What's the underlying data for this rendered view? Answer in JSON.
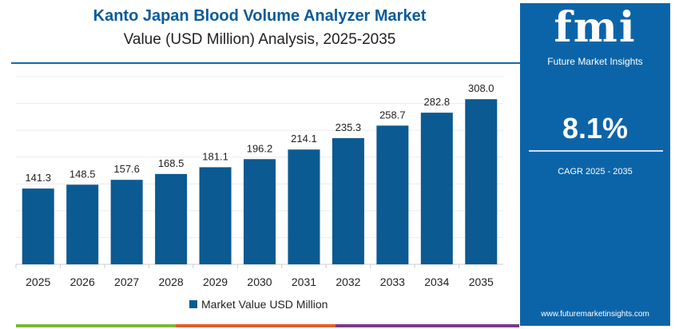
{
  "chart_data": {
    "type": "bar",
    "title": "Kanto Japan Blood Volume Analyzer Market",
    "subtitle": "Value (USD Million) Analysis, 2025-2035",
    "categories": [
      "2025",
      "2026",
      "2027",
      "2028",
      "2029",
      "2030",
      "2031",
      "2032",
      "2033",
      "2034",
      "2035"
    ],
    "series": [
      {
        "name": "Market Value USD Million",
        "values": [
          141.3,
          148.5,
          157.6,
          168.5,
          181.1,
          196.2,
          214.1,
          235.3,
          258.7,
          282.8,
          308.0
        ],
        "color": "#0b5a92"
      }
    ],
    "data_labels": [
      "141.3",
      "148.5",
      "157.6",
      "168.5",
      "181.1",
      "196.2",
      "214.1",
      "235.3",
      "258.7",
      "282.8",
      "308.0"
    ],
    "ylim": [
      0,
      350
    ],
    "grid": true,
    "legend": "bottom"
  },
  "panel": {
    "logo": "fmi",
    "brand": "Future Market Insights",
    "cagr_value": "8.1%",
    "cagr_label": "CAGR 2025 - 2035",
    "url": "www.futuremarketinsights.com",
    "color": "#0c64a8"
  }
}
